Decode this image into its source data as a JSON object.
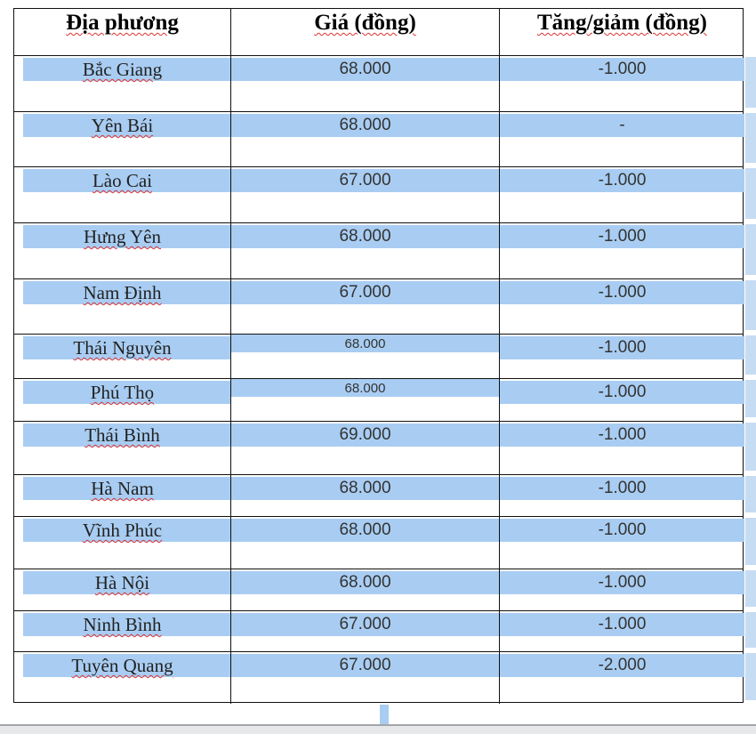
{
  "table": {
    "headers": [
      "Địa phương",
      "Giá (đồng)",
      "Tăng/giảm (đồng)"
    ],
    "rows": [
      [
        "Bắc Giang",
        "68.000",
        "-1.000"
      ],
      [
        "Yên Bái",
        "68.000",
        "-"
      ],
      [
        "Lào Cai",
        "67.000",
        "-1.000"
      ],
      [
        "Hưng Yên",
        "68.000",
        "-1.000"
      ],
      [
        "Nam Định",
        "67.000",
        "-1.000"
      ],
      [
        "Thái Nguyên",
        "68.000",
        "-1.000"
      ],
      [
        "Phú Thọ",
        "68.000",
        "-1.000"
      ],
      [
        "Thái Bình",
        "69.000",
        "-1.000"
      ],
      [
        "Hà Nam",
        "68.000",
        "-1.000"
      ],
      [
        "Vĩnh Phúc",
        "68.000",
        "-1.000"
      ],
      [
        "Hà Nội",
        "68.000",
        "-1.000"
      ],
      [
        "Ninh Bình",
        "67.000",
        "-1.000"
      ],
      [
        "Tuyên Quang",
        "67.000",
        "-2.000"
      ]
    ]
  },
  "colors": {
    "selection": "#a9cdf2",
    "border": "#111111",
    "spellcheck": "#dd3333"
  }
}
